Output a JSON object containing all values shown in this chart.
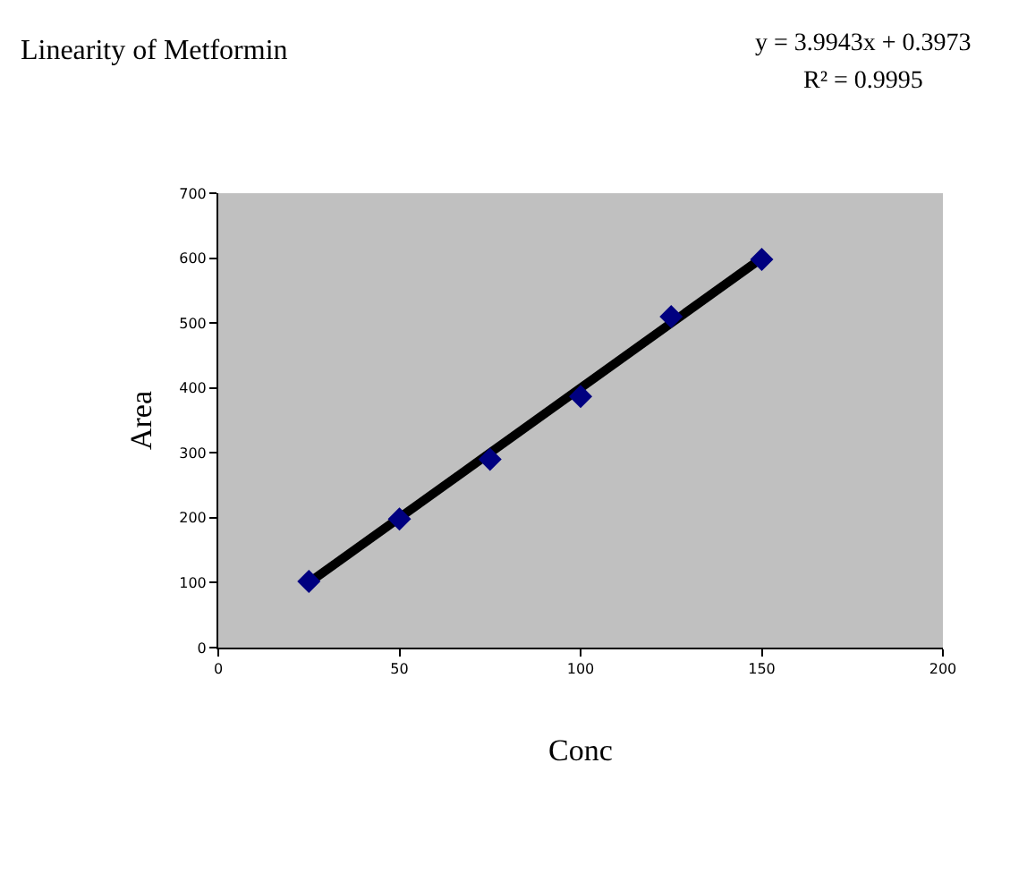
{
  "chart_data": {
    "type": "scatter",
    "title": "Linearity of Metformin",
    "xlabel": "Conc",
    "ylabel": "Area",
    "annotations": [
      "y = 3.9943x + 0.3973",
      "R² = 0.9995"
    ],
    "series": [
      {
        "color": "#000080",
        "x": [
          25,
          50,
          75,
          100,
          125,
          150
        ],
        "values": [
          102,
          198,
          290,
          387,
          510,
          598
        ],
        "marker": "diamond"
      },
      {
        "type": "line",
        "color": "#000000",
        "x": [
          25,
          150
        ],
        "values": [
          100,
          600
        ],
        "marker": "none"
      }
    ],
    "xlim": [
      0,
      200
    ],
    "xticks": [
      0,
      50,
      100,
      150,
      200
    ],
    "ylim": [
      0,
      700
    ],
    "yticks": [
      0,
      100,
      200,
      300,
      400,
      500,
      600,
      700
    ],
    "grid": false
  }
}
